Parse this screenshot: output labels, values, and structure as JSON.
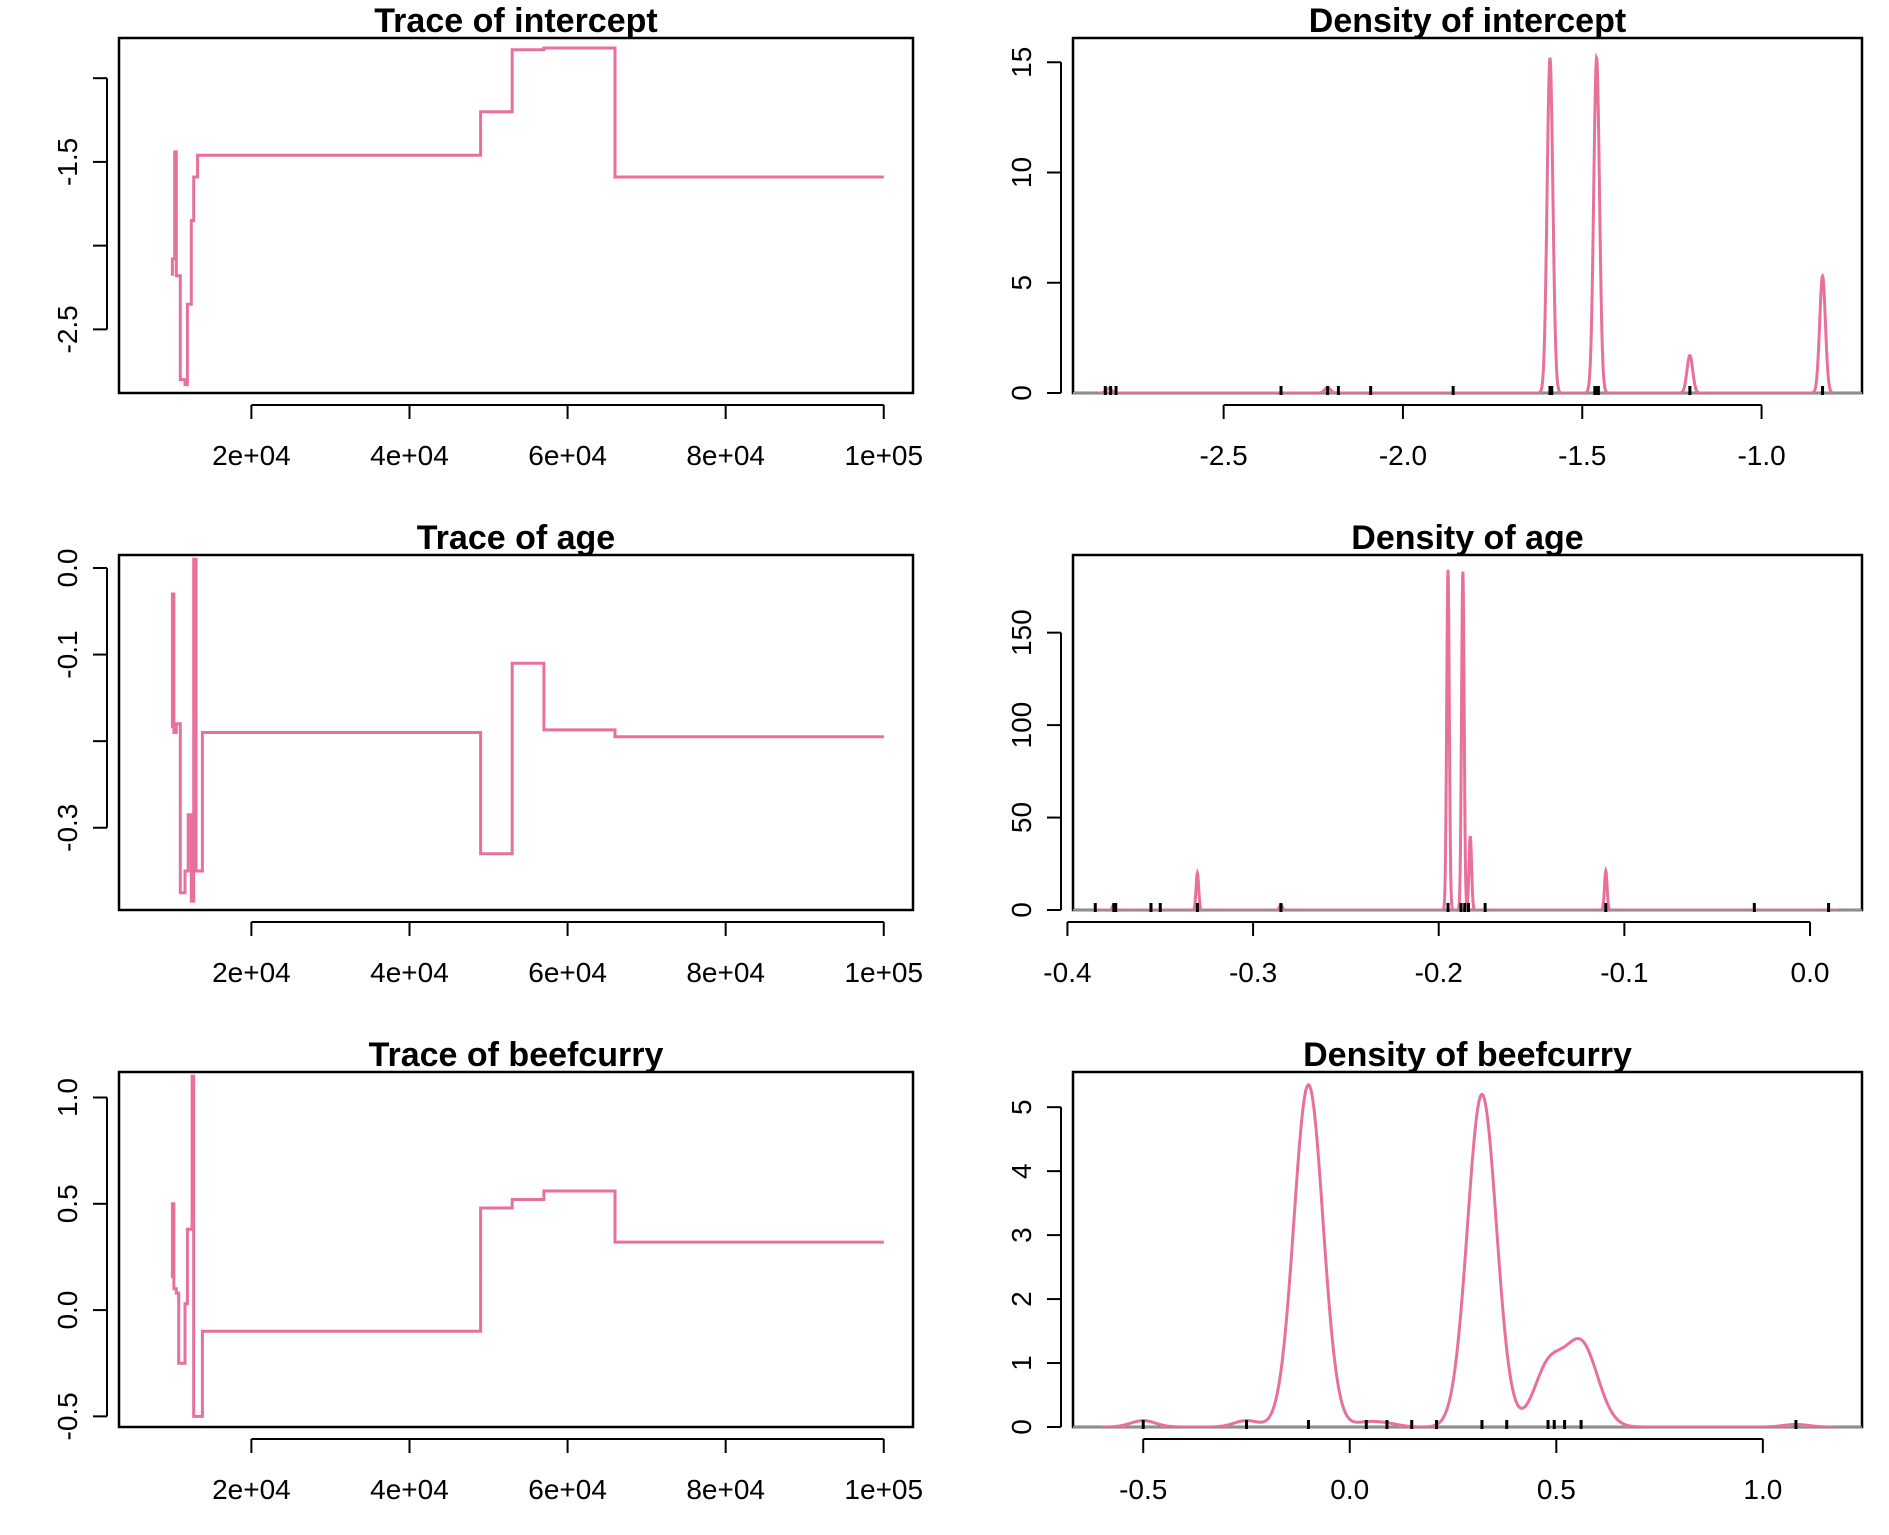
{
  "colors": {
    "line": "#E8709C",
    "axis": "#000000",
    "zero_line": "#BEBEBE",
    "rug": "#000000"
  },
  "chart_data": [
    {
      "id": "trace-intercept",
      "type": "line",
      "title": "Trace of intercept",
      "xlabel": "",
      "ylabel": "",
      "xlim": [
        3250,
        103700
      ],
      "ylim": [
        -2.88,
        -0.76
      ],
      "x_ticks": [
        20000,
        40000,
        60000,
        80000,
        100000
      ],
      "x_tick_labels": [
        "2e+04",
        "4e+04",
        "6e+04",
        "8e+04",
        "1e+05"
      ],
      "y_ticks": [
        -1.0,
        -1.5,
        -2.0,
        -2.5
      ],
      "y_tick_labels": [
        "",
        "-1.5",
        "",
        "-2.5"
      ],
      "grid": false,
      "series": [
        {
          "x": [
            10000,
            10000,
            10300,
            10300,
            10500,
            10500,
            11000,
            11000,
            11600,
            11600,
            11900,
            11900,
            12400,
            12400,
            12700,
            12700,
            13000,
            13000,
            13200,
            13200,
            13800,
            13800,
            49000,
            49000,
            53000,
            53000,
            57000,
            57000,
            66000,
            66000,
            100000
          ],
          "y": [
            -2.18,
            -2.08,
            -2.08,
            -1.44,
            -1.44,
            -2.18,
            -2.18,
            -2.8,
            -2.8,
            -2.83,
            -2.83,
            -2.35,
            -2.35,
            -1.85,
            -1.85,
            -1.59,
            -1.59,
            -1.59,
            -1.59,
            -1.46,
            -1.46,
            -1.46,
            -1.46,
            -1.2,
            -1.2,
            -0.83,
            -0.83,
            -0.82,
            -0.82,
            -1.59,
            -1.59
          ]
        }
      ]
    },
    {
      "id": "density-intercept",
      "type": "line",
      "title": "Density of intercept",
      "xlabel": "",
      "ylabel": "",
      "xlim": [
        -2.92,
        -0.72
      ],
      "ylim": [
        0,
        16.1
      ],
      "x_ticks": [
        -2.5,
        -2.0,
        -1.5,
        -1.0
      ],
      "x_tick_labels": [
        "-2.5",
        "-2.0",
        "-1.5",
        "-1.0"
      ],
      "y_ticks": [
        0,
        5,
        10,
        15
      ],
      "y_tick_labels": [
        "0",
        "5",
        "10",
        "15"
      ],
      "grid": false,
      "x_range": [
        -2.85,
        -0.8
      ],
      "peaks": [
        {
          "mu": -2.82,
          "sd": 0.008,
          "height": 0.2
        },
        {
          "mu": -2.21,
          "sd": 0.008,
          "height": 0.25
        },
        {
          "mu": -1.59,
          "sd": 0.008,
          "height": 15.2
        },
        {
          "mu": -1.46,
          "sd": 0.008,
          "height": 15.2
        },
        {
          "mu": -1.2,
          "sd": 0.008,
          "height": 1.7
        },
        {
          "mu": -0.83,
          "sd": 0.008,
          "height": 5.3
        }
      ],
      "rug": [
        -2.83,
        -2.815,
        -2.8,
        -2.34,
        -2.21,
        -2.18,
        -2.09,
        -1.86,
        -1.59,
        -1.585,
        -1.465,
        -1.46,
        -1.455,
        -1.2,
        -0.83
      ]
    },
    {
      "id": "trace-age",
      "type": "line",
      "title": "Trace of age",
      "xlabel": "",
      "ylabel": "",
      "xlim": [
        3250,
        103700
      ],
      "ylim": [
        -0.395,
        0.015
      ],
      "x_ticks": [
        20000,
        40000,
        60000,
        80000,
        100000
      ],
      "x_tick_labels": [
        "2e+04",
        "4e+04",
        "6e+04",
        "8e+04",
        "1e+05"
      ],
      "y_ticks": [
        0.0,
        -0.1,
        -0.2,
        -0.3
      ],
      "y_tick_labels": [
        "0.0",
        "-0.1",
        "",
        "-0.3"
      ],
      "grid": false,
      "series": [
        {
          "x": [
            10000,
            10000,
            10200,
            10200,
            10500,
            10500,
            11000,
            11000,
            11600,
            11600,
            12000,
            12000,
            12400,
            12400,
            12700,
            12700,
            13000,
            13000,
            13800,
            13800,
            49000,
            49000,
            53000,
            53000,
            57000,
            57000,
            66000,
            66000,
            100000
          ],
          "y": [
            -0.185,
            -0.03,
            -0.03,
            -0.19,
            -0.19,
            -0.18,
            -0.18,
            -0.375,
            -0.375,
            -0.35,
            -0.35,
            -0.285,
            -0.285,
            -0.385,
            -0.385,
            0.01,
            0.01,
            -0.35,
            -0.35,
            -0.19,
            -0.19,
            -0.33,
            -0.33,
            -0.11,
            -0.11,
            -0.187,
            -0.187,
            -0.195,
            -0.195
          ]
        }
      ]
    },
    {
      "id": "density-age",
      "type": "line",
      "title": "Density of age",
      "xlabel": "",
      "ylabel": "",
      "xlim": [
        -0.397,
        0.028
      ],
      "ylim": [
        0,
        192
      ],
      "x_ticks": [
        -0.4,
        -0.3,
        -0.2,
        -0.1,
        0.0
      ],
      "x_tick_labels": [
        "-0.4",
        "-0.3",
        "-0.2",
        "-0.1",
        "0.0"
      ],
      "y_ticks": [
        0,
        50,
        100,
        150
      ],
      "y_tick_labels": [
        "0",
        "50",
        "100",
        "150"
      ],
      "grid": false,
      "x_range": [
        -0.385,
        0.015
      ],
      "peaks": [
        {
          "mu": -0.375,
          "sd": 0.0007,
          "height": 3
        },
        {
          "mu": -0.33,
          "sd": 0.0007,
          "height": 20
        },
        {
          "mu": -0.285,
          "sd": 0.0007,
          "height": 3
        },
        {
          "mu": -0.195,
          "sd": 0.0007,
          "height": 184
        },
        {
          "mu": -0.187,
          "sd": 0.0007,
          "height": 183
        },
        {
          "mu": -0.183,
          "sd": 0.0007,
          "height": 40
        },
        {
          "mu": -0.11,
          "sd": 0.0007,
          "height": 21
        }
      ],
      "rug": [
        -0.385,
        -0.375,
        -0.374,
        -0.355,
        -0.35,
        -0.33,
        -0.285,
        -0.195,
        -0.188,
        -0.186,
        -0.184,
        -0.175,
        -0.11,
        -0.03,
        0.01
      ]
    },
    {
      "id": "trace-beefcurry",
      "type": "line",
      "title": "Trace of beefcurry",
      "xlabel": "",
      "ylabel": "",
      "xlim": [
        3250,
        103700
      ],
      "ylim": [
        -0.55,
        1.12
      ],
      "x_ticks": [
        20000,
        40000,
        60000,
        80000,
        100000
      ],
      "x_tick_labels": [
        "2e+04",
        "4e+04",
        "6e+04",
        "8e+04",
        "1e+05"
      ],
      "y_ticks": [
        1.0,
        0.5,
        0.0,
        -0.5
      ],
      "y_tick_labels": [
        "1.0",
        "0.5",
        "0.0",
        "-0.5"
      ],
      "grid": false,
      "series": [
        {
          "x": [
            10000,
            10000,
            10200,
            10200,
            10500,
            10500,
            10800,
            10800,
            11000,
            11000,
            11600,
            11600,
            11900,
            11900,
            12300,
            12300,
            12500,
            12500,
            12700,
            12700,
            12900,
            12900,
            13800,
            13800,
            49000,
            49000,
            53000,
            53000,
            57000,
            57000,
            66000,
            66000,
            100000
          ],
          "y": [
            0.15,
            0.5,
            0.5,
            0.1,
            0.1,
            0.08,
            0.08,
            -0.25,
            -0.25,
            -0.25,
            -0.25,
            0.03,
            0.03,
            0.38,
            0.38,
            0.38,
            0.38,
            1.1,
            1.1,
            -0.5,
            -0.5,
            -0.5,
            -0.5,
            -0.1,
            -0.1,
            0.48,
            0.48,
            0.52,
            0.52,
            0.56,
            0.56,
            0.32,
            0.32
          ]
        }
      ]
    },
    {
      "id": "density-beefcurry",
      "type": "line",
      "title": "Density of beefcurry",
      "xlabel": "",
      "ylabel": "",
      "xlim": [
        -0.67,
        1.24
      ],
      "ylim": [
        0,
        5.55
      ],
      "x_ticks": [
        -0.5,
        0.0,
        0.5,
        1.0
      ],
      "x_tick_labels": [
        "-0.5",
        "0.0",
        "0.5",
        "1.0"
      ],
      "y_ticks": [
        0,
        1,
        2,
        3,
        4,
        5
      ],
      "y_tick_labels": [
        "0",
        "1",
        "2",
        "3",
        "4",
        "5"
      ],
      "grid": false,
      "x_range": [
        -0.6,
        1.17
      ],
      "peaks": [
        {
          "mu": -0.5,
          "sd": 0.03,
          "height": 0.1
        },
        {
          "mu": -0.25,
          "sd": 0.03,
          "height": 0.1
        },
        {
          "mu": -0.1,
          "sd": 0.035,
          "height": 5.35
        },
        {
          "mu": 0.04,
          "sd": 0.03,
          "height": 0.07
        },
        {
          "mu": 0.09,
          "sd": 0.03,
          "height": 0.05
        },
        {
          "mu": 0.32,
          "sd": 0.035,
          "height": 5.2
        },
        {
          "mu": 0.48,
          "sd": 0.035,
          "height": 0.9
        },
        {
          "mu": 0.56,
          "sd": 0.04,
          "height": 1.3
        },
        {
          "mu": 1.08,
          "sd": 0.03,
          "height": 0.04
        }
      ],
      "rug": [
        -0.5,
        -0.25,
        -0.1,
        0.04,
        0.09,
        0.15,
        0.21,
        0.32,
        0.38,
        0.48,
        0.495,
        0.52,
        0.56,
        1.08
      ]
    }
  ]
}
